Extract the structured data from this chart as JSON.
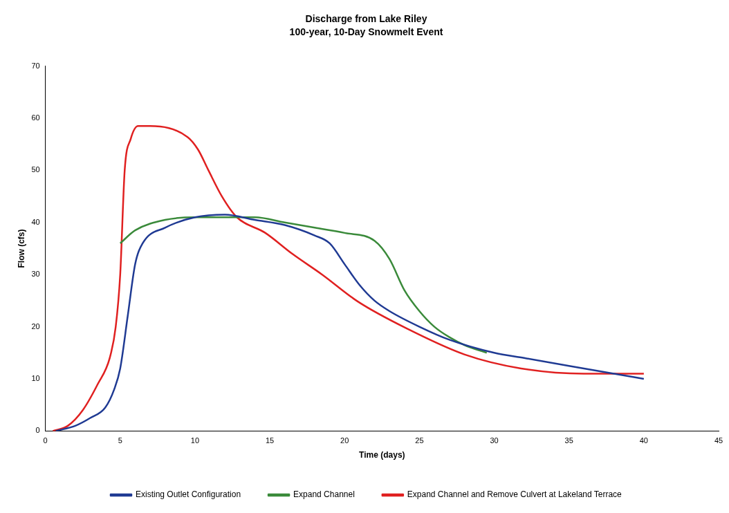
{
  "chart_data": {
    "type": "line",
    "title": "Discharge from Lake Riley",
    "subtitle": "100-year, 10-Day Snowmelt Event",
    "xlabel": "Time (days)",
    "ylabel": "Flow (cfs)",
    "xlim": [
      0,
      45
    ],
    "xticks": [
      0,
      5,
      10,
      15,
      20,
      25,
      30,
      35,
      40,
      45
    ],
    "ylim": [
      0,
      70
    ],
    "yticks": [
      0,
      10,
      20,
      30,
      40,
      50,
      60,
      70
    ],
    "legend": "bottom",
    "grid": false,
    "marker": "none",
    "line_style": "solid",
    "series": [
      {
        "name": "Existing Outlet Configuration",
        "color": "#1f3a93",
        "x": [
          0.7,
          2,
          3,
          4,
          4.6,
          5,
          5.5,
          6,
          6.5,
          8,
          10,
          12,
          14,
          16,
          18,
          19,
          20,
          21,
          22,
          23,
          25,
          27,
          30,
          32,
          35,
          38,
          40
        ],
        "values": [
          0,
          1,
          2.5,
          4.5,
          8,
          12,
          22,
          32,
          36,
          39,
          41,
          41.5,
          40.5,
          39.5,
          37.5,
          36,
          32,
          28,
          25,
          23,
          20,
          17.5,
          15,
          14,
          12.5,
          11,
          10
        ]
      },
      {
        "name": "Expand Channel",
        "color": "#3a8a3a",
        "x": [
          5,
          6,
          8,
          10,
          14,
          16,
          18,
          20,
          22,
          23,
          24,
          25,
          26,
          27,
          28,
          29.5
        ],
        "values": [
          36,
          38.5,
          40.5,
          41,
          41,
          40,
          39,
          38,
          36.5,
          33,
          27,
          23,
          20,
          18,
          16.5,
          15
        ]
      },
      {
        "name": "Expand Channel and Remove Culvert at Lakeland Terrace",
        "color": "#e02020",
        "x": [
          0.5,
          1.5,
          2.5,
          3.5,
          4.3,
          4.7,
          5,
          5.3,
          5.7,
          6.2,
          7,
          9.5,
          10.2,
          10.9,
          11.8,
          12.8,
          14.7,
          16.5,
          18.5,
          20.9,
          24.2,
          28,
          31.8,
          36,
          40
        ],
        "values": [
          0,
          1,
          4,
          9,
          14,
          20,
          30,
          50,
          56,
          58.5,
          58.5,
          56.4,
          54,
          50,
          45,
          41,
          38,
          34,
          30,
          24.8,
          19.6,
          14.7,
          12,
          11,
          11
        ]
      }
    ]
  }
}
